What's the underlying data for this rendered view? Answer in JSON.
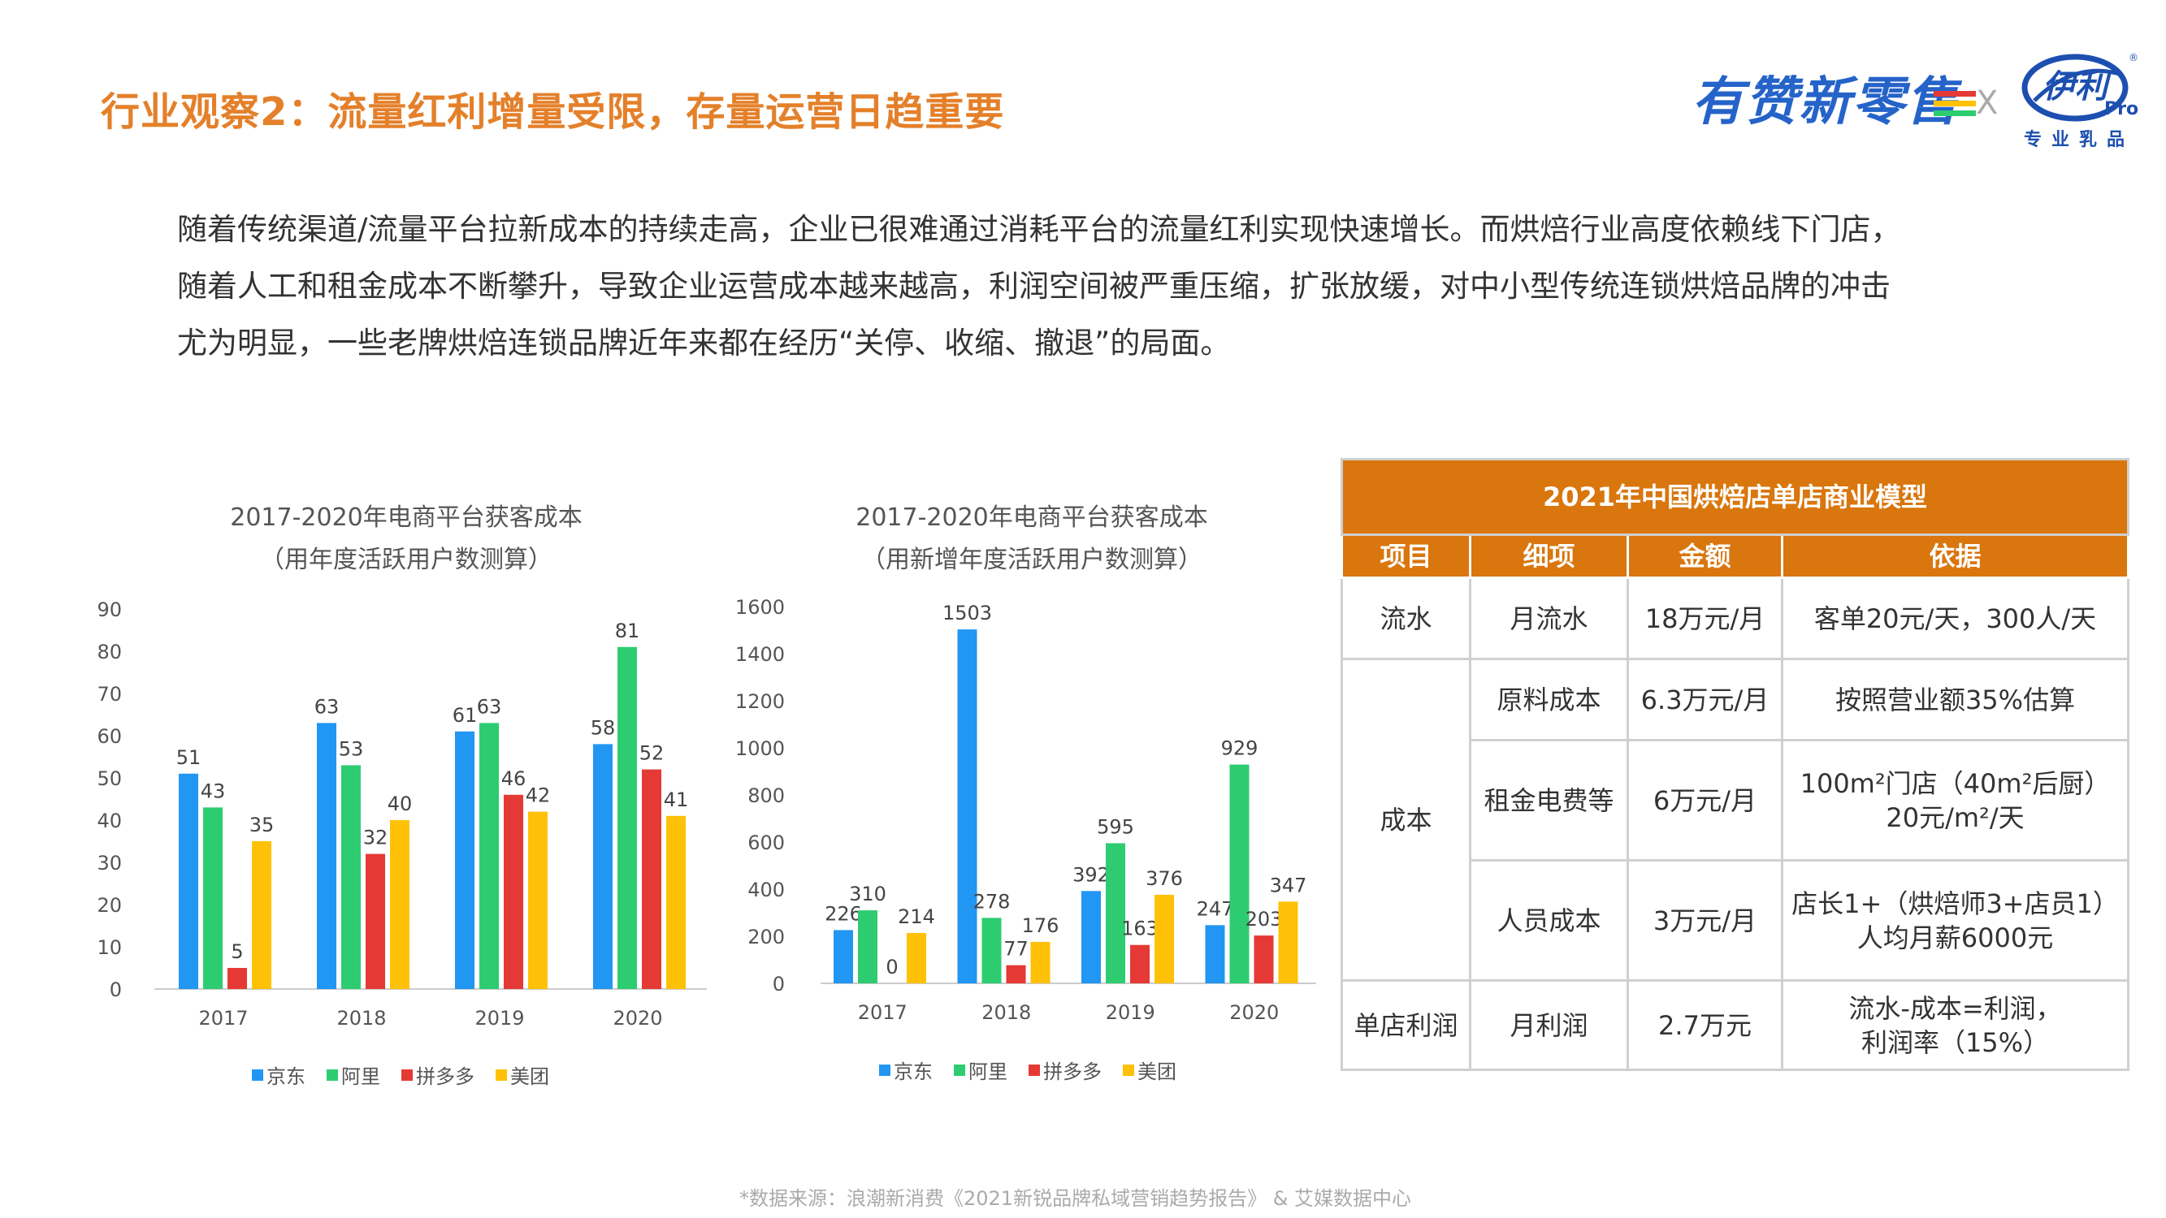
{
  "page": {
    "title": "行业观察2：流量红利增量受限，存量运营日趋重要",
    "paragraph": [
      "随着传统渠道/流量平台拉新成本的持续走高，企业已很难通过消耗平台的流量红利实现快速增长。而烘焙行业高度依赖线下门店，",
      "随着人工和租金成本不断攀升，导致企业运营成本越来越高，利润空间被严重压缩，扩张放缓，对中小型传统连锁烘焙品牌的冲击",
      "尤为明显，一些老牌烘焙连锁品牌近年来都在经历“关停、收缩、撤退”的局面。"
    ],
    "source": "*数据来源：浪潮新消费《2021新锐品牌私域营销趋势报告》 & 艾媒数据中心"
  },
  "logos": {
    "youzan": "有赞新零售",
    "x": "X",
    "yili": "伊利",
    "yili_pro": "Pro",
    "yili_sub": "专业乳品",
    "yili_reg": "®"
  },
  "colors": {
    "title": "#e4802a",
    "jd": "#2196f3",
    "ali": "#2ecc71",
    "pdd": "#e53935",
    "meituan": "#ffc107",
    "table_header": "#d9760d"
  },
  "chart_data": [
    {
      "type": "bar",
      "title": "2017-2020年电商平台获客成本",
      "subtitle": "（用年度活跃用户数测算）",
      "categories": [
        "2017",
        "2018",
        "2019",
        "2020"
      ],
      "ylim": [
        0,
        90
      ],
      "yticks": [
        0,
        10,
        20,
        30,
        40,
        50,
        60,
        70,
        80,
        90
      ],
      "series": [
        {
          "name": "京东",
          "values": [
            51,
            63,
            61,
            58
          ]
        },
        {
          "name": "阿里",
          "values": [
            43,
            53,
            63,
            81
          ]
        },
        {
          "name": "拼多多",
          "values": [
            5,
            32,
            46,
            52
          ]
        },
        {
          "name": "美团",
          "values": [
            35,
            40,
            42,
            41
          ]
        }
      ],
      "legend": "bottom",
      "grid": false
    },
    {
      "type": "bar",
      "title": "2017-2020年电商平台获客成本",
      "subtitle": "（用新增年度活跃用户数测算）",
      "categories": [
        "2017",
        "2018",
        "2019",
        "2020"
      ],
      "ylim": [
        0,
        1600
      ],
      "yticks": [
        0,
        200,
        400,
        600,
        800,
        1000,
        1200,
        1400,
        1600
      ],
      "series": [
        {
          "name": "京东",
          "values": [
            226,
            1503,
            392,
            247
          ]
        },
        {
          "name": "阿里",
          "values": [
            310,
            278,
            595,
            929
          ]
        },
        {
          "name": "拼多多",
          "values": [
            0,
            77,
            163,
            203
          ]
        },
        {
          "name": "美团",
          "values": [
            214,
            176,
            376,
            347
          ]
        }
      ],
      "legend": "bottom",
      "grid": false
    }
  ],
  "table": {
    "title": "2021年中国烘焙店单店商业模型",
    "headers": [
      "项目",
      "细项",
      "金额",
      "依据"
    ],
    "rows": {
      "r1": {
        "item": "流水",
        "detail": "月流水",
        "amount": "18万元/月",
        "basis": "客单20元/天，300人/天"
      },
      "cost_label": "成本",
      "r2": {
        "detail": "原料成本",
        "amount": "6.3万元/月",
        "basis": "按照营业额35%估算"
      },
      "r3": {
        "detail": "租金电费等",
        "amount": "6万元/月",
        "basis_l1": "100m²门店（40m²后厨）",
        "basis_l2": "20元/m²/天"
      },
      "r4": {
        "detail": "人员成本",
        "amount": "3万元/月",
        "basis_l1": "店长1+（烘焙师3+店员1）",
        "basis_l2": "人均月薪6000元"
      },
      "r5": {
        "item": "单店利润",
        "detail": "月利润",
        "amount": "2.7万元",
        "basis_l1": "流水-成本=利润，",
        "basis_l2": "利润率（15%）"
      }
    }
  }
}
